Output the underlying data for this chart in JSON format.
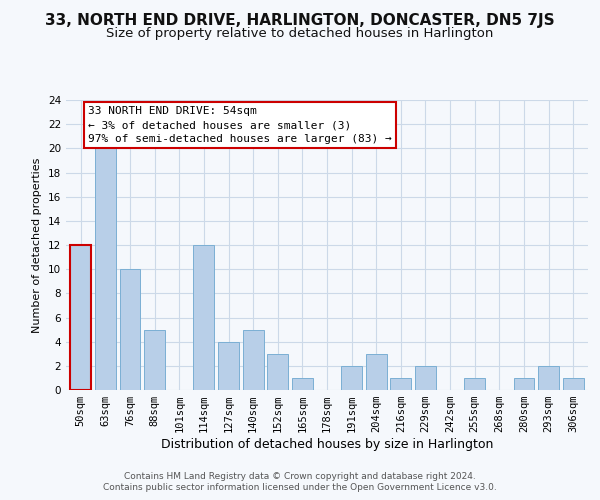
{
  "title": "33, NORTH END DRIVE, HARLINGTON, DONCASTER, DN5 7JS",
  "subtitle": "Size of property relative to detached houses in Harlington",
  "xlabel": "Distribution of detached houses by size in Harlington",
  "ylabel": "Number of detached properties",
  "footer_line1": "Contains HM Land Registry data © Crown copyright and database right 2024.",
  "footer_line2": "Contains public sector information licensed under the Open Government Licence v3.0.",
  "annotation_line1": "33 NORTH END DRIVE: 54sqm",
  "annotation_line2": "← 3% of detached houses are smaller (3)",
  "annotation_line3": "97% of semi-detached houses are larger (83) →",
  "categories": [
    "50sqm",
    "63sqm",
    "76sqm",
    "88sqm",
    "101sqm",
    "114sqm",
    "127sqm",
    "140sqm",
    "152sqm",
    "165sqm",
    "178sqm",
    "191sqm",
    "204sqm",
    "216sqm",
    "229sqm",
    "242sqm",
    "255sqm",
    "268sqm",
    "280sqm",
    "293sqm",
    "306sqm"
  ],
  "values": [
    12,
    20,
    10,
    5,
    0,
    12,
    4,
    5,
    3,
    1,
    0,
    2,
    3,
    1,
    2,
    0,
    1,
    0,
    1,
    2,
    1
  ],
  "bar_color": "#b8cfe8",
  "bar_edge_color": "#7bafd4",
  "highlight_bar_index": 0,
  "highlight_edge_color": "#cc0000",
  "annotation_box_edge_color": "#cc0000",
  "annotation_box_face_color": "#ffffff",
  "grid_color": "#ccd9e8",
  "background_color": "#f5f8fc",
  "ylim": [
    0,
    24
  ],
  "yticks": [
    0,
    2,
    4,
    6,
    8,
    10,
    12,
    14,
    16,
    18,
    20,
    22,
    24
  ],
  "title_fontsize": 11,
  "subtitle_fontsize": 9.5,
  "xlabel_fontsize": 9,
  "ylabel_fontsize": 8,
  "tick_fontsize": 7.5,
  "annotation_fontsize": 8,
  "footer_fontsize": 6.5
}
